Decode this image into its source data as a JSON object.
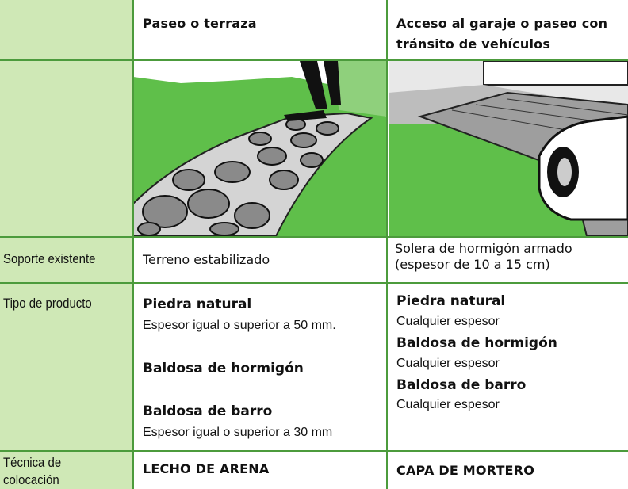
{
  "header": {
    "columns": [
      "Paseo o terraza",
      [
        "Acceso al garaje o paseo con",
        "tránsito de vehículos"
      ]
    ]
  },
  "rows": [
    {
      "label": "Soporte existente",
      "cells": [
        [
          "Terreno estabilizado"
        ],
        [
          "Solera de hormigón armado",
          "(espesor de 10 a 15 cm)"
        ]
      ]
    },
    {
      "label": "Tipo de producto",
      "cells": [
        [
          {
            "name": "Piedra natural",
            "note": "Espesor igual o superior a 50 mm."
          },
          {
            "name": "Baldosa de hormigón"
          },
          {
            "name": "Baldosa de barro",
            "note": "Espesor igual o superior a 30 mm"
          }
        ],
        [
          {
            "name": "Piedra natural",
            "note": "Cualquier espesor"
          },
          {
            "name": "Baldosa de hormigón",
            "note": "Cualquier espesor"
          },
          {
            "name": "Baldosa de barro",
            "note": "Cualquier espesor"
          }
        ]
      ]
    },
    {
      "label": [
        "Técnica de",
        "colocación"
      ],
      "cells": [
        "LECHO DE ARENA",
        "CAPA DE MORTERO"
      ]
    }
  ]
}
